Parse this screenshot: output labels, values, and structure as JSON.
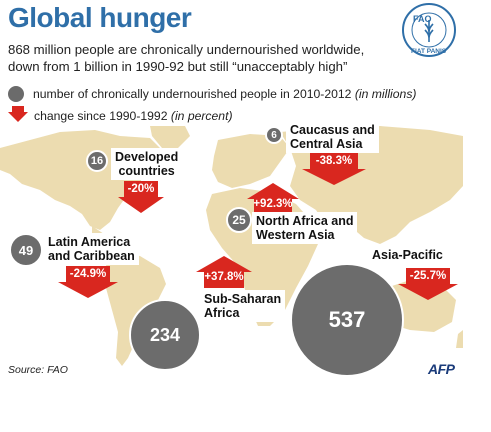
{
  "title": "Global hunger",
  "subtitle_line1": "868 million people are chronically undernourished worldwide,",
  "subtitle_line2": "down from 1 billion in 1990-92 but still “unacceptably high”",
  "logo_text": "FAO",
  "logo_ring_text": "FIAT PANIS",
  "legend": {
    "circle_text": "number of chronically undernourished people in 2010-2012",
    "circle_unit": "(in millions)",
    "arrow_text": "change since 1990-1992",
    "arrow_unit": "(in percent)"
  },
  "regions": [
    {
      "id": "developed",
      "name_line1": "Developed",
      "name_line2": "countries",
      "people": "16",
      "change": "-20%"
    },
    {
      "id": "caucasus",
      "name_line1": "Caucasus and",
      "name_line2": "Central Asia",
      "people": "6",
      "change": "-38.3%"
    },
    {
      "id": "nafrica",
      "name_line1": "North Africa and",
      "name_line2": "Western Asia",
      "people": "25",
      "change": "+92.3%"
    },
    {
      "id": "latam",
      "name_line1": "Latin America",
      "name_line2": "and Caribbean",
      "people": "49",
      "change": "-24.9%"
    },
    {
      "id": "ssafrica",
      "name_line1": "Sub-Saharan",
      "name_line2": "Africa",
      "people": "234",
      "change": "+37.8%"
    },
    {
      "id": "asiapac",
      "name_line1": "Asia-Pacific",
      "name_line2": "",
      "people": "537",
      "change": "-25.7%"
    }
  ],
  "source": "Source: FAO",
  "credit": "AFP",
  "colors": {
    "title": "#2f6fa8",
    "arrow": "#d9271f",
    "circle": "#6c6c6c",
    "land": "#ecdcb0",
    "ocean": "#ffffff"
  }
}
